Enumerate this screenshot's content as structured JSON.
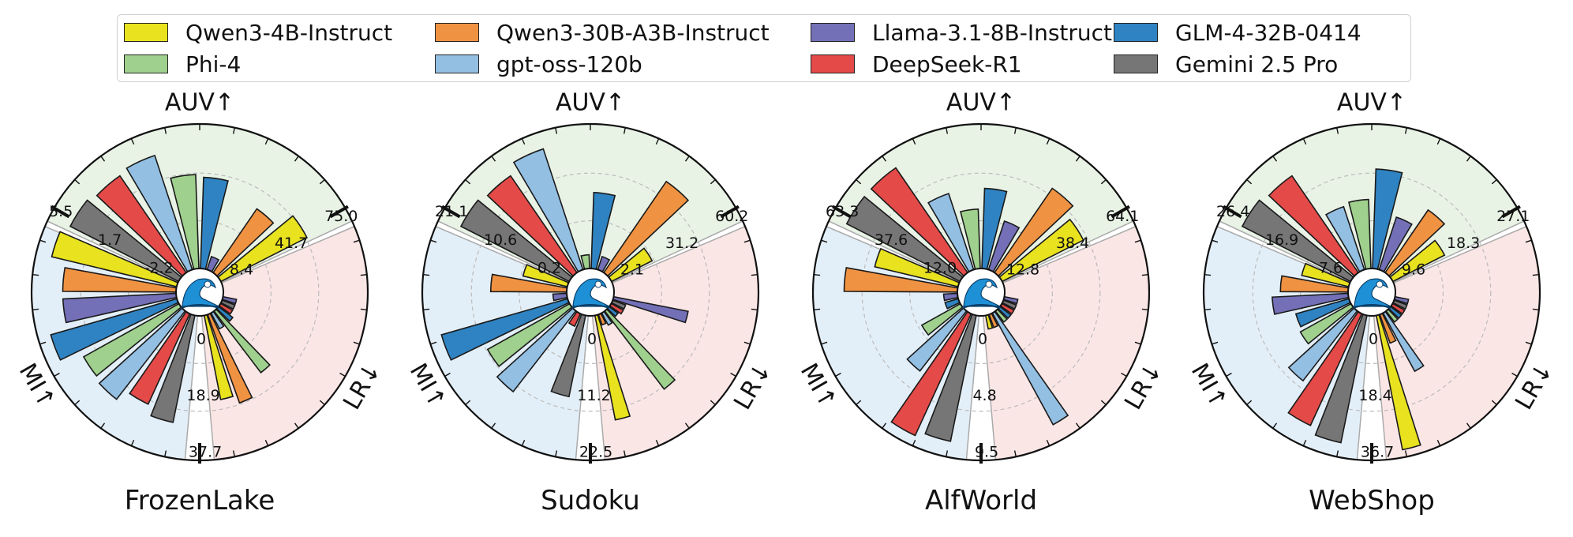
{
  "legend": [
    {
      "label": "Qwen3-4B-Instruct",
      "color": "#e8e21f"
    },
    {
      "label": "Phi-4",
      "color": "#9fd08d"
    },
    {
      "label": "Qwen3-30B-A3B-Instruct",
      "color": "#ef9242"
    },
    {
      "label": "gpt-oss-120b",
      "color": "#93bfe3"
    },
    {
      "label": "Llama-3.1-8B-Instruct",
      "color": "#7370b8"
    },
    {
      "label": "DeepSeek-R1",
      "color": "#e34a48"
    },
    {
      "label": "GLM-4-32B-0414",
      "color": "#2f83c2"
    },
    {
      "label": "Gemini 2.5 Pro",
      "color": "#767676"
    }
  ],
  "center_icon": "ocean-wave-icon",
  "sector_colors": {
    "AUV": "#e8f3e6",
    "LR": "#fbe6e6",
    "MI": "#e3eff8"
  },
  "chart_data": [
    {
      "type": "polar-bar",
      "title": "FrozenLake",
      "axes": [
        {
          "key": "AUV",
          "label": "AUV↑",
          "ticks": [
            "8.4",
            "41.7",
            "75.0"
          ]
        },
        {
          "key": "LR",
          "label": "LR↓",
          "ticks": [
            "0",
            "18.9",
            "37.7"
          ]
        },
        {
          "key": "MI",
          "label": "MI↑",
          "ticks": [
            "-2.2",
            "1.7",
            "5.5"
          ]
        }
      ],
      "series": [
        {
          "name": "Qwen3-4B-Instruct",
          "AUV": 0.7,
          "LR": 0.62,
          "MI": 0.93
        },
        {
          "name": "Qwen3-30B-A3B-Instruct",
          "AUV": 0.56,
          "LR": 0.68,
          "MI": 0.82
        },
        {
          "name": "GLM-4-32B-0414",
          "AUV": 0.66,
          "LR": 0.13,
          "MI": 0.95
        },
        {
          "name": "Phi-4",
          "AUV": 0.68,
          "LR": 0.56,
          "MI": 0.79
        },
        {
          "name": "gpt-oss-120b",
          "AUV": 0.87,
          "LR": 0.13,
          "MI": 0.81
        },
        {
          "name": "DeepSeek-R1",
          "AUV": 0.85,
          "LR": 0.1,
          "MI": 0.72
        },
        {
          "name": "Gemini 2.5 Pro",
          "AUV": 0.88,
          "LR": 0.1,
          "MI": 0.79
        },
        {
          "name": "Llama-3.1-8B-Instruct",
          "AUV": 0.1,
          "LR": 0.1,
          "MI": 0.82
        }
      ]
    },
    {
      "type": "polar-bar",
      "title": "Sudoku",
      "axes": [
        {
          "key": "AUV",
          "label": "AUV↑",
          "ticks": [
            "2.1",
            "31.2",
            "60.2"
          ]
        },
        {
          "key": "LR",
          "label": "LR↓",
          "ticks": [
            "0",
            "11.2",
            "22.5"
          ]
        },
        {
          "key": "MI",
          "label": "MI↑",
          "ticks": [
            "0.2",
            "10.6",
            "21.1"
          ]
        }
      ],
      "series": [
        {
          "name": "Qwen3-4B-Instruct",
          "AUV": 0.33,
          "LR": 0.77,
          "MI": 0.33
        },
        {
          "name": "Qwen3-30B-A3B-Instruct",
          "AUV": 0.8,
          "LR": 0.08,
          "MI": 0.55
        },
        {
          "name": "GLM-4-32B-0414",
          "AUV": 0.55,
          "LR": 0.08,
          "MI": 0.95
        },
        {
          "name": "Phi-4",
          "AUV": 0.1,
          "LR": 0.71,
          "MI": 0.68
        },
        {
          "name": "gpt-oss-120b",
          "AUV": 0.92,
          "LR": 0.1,
          "MI": 0.74
        },
        {
          "name": "DeepSeek-R1",
          "AUV": 0.85,
          "LR": 0.1,
          "MI": 0.1
        },
        {
          "name": "Gemini 2.5 Pro",
          "AUV": 0.88,
          "LR": 0.1,
          "MI": 0.6
        },
        {
          "name": "Llama-3.1-8B-Instruct",
          "AUV": 0.1,
          "LR": 0.55,
          "MI": 0.1
        }
      ]
    },
    {
      "type": "polar-bar",
      "title": "AlfWorld",
      "axes": [
        {
          "key": "AUV",
          "label": "AUV↑",
          "ticks": [
            "12.8",
            "38.4",
            "64.1"
          ]
        },
        {
          "key": "LR",
          "label": "LR↓",
          "ticks": [
            "0",
            "4.8",
            "9.5"
          ]
        },
        {
          "key": "MI",
          "label": "MI↑",
          "ticks": [
            "12.0",
            "37.6",
            "63.3"
          ]
        }
      ],
      "series": [
        {
          "name": "Qwen3-4B-Instruct",
          "AUV": 0.66,
          "LR": 0.1,
          "MI": 0.62
        },
        {
          "name": "Qwen3-30B-A3B-Instruct",
          "AUV": 0.74,
          "LR": 0.1,
          "MI": 0.82
        },
        {
          "name": "GLM-4-32B-0414",
          "AUV": 0.58,
          "LR": 0.1,
          "MI": 0.1
        },
        {
          "name": "Phi-4",
          "AUV": 0.43,
          "LR": 0.1,
          "MI": 0.32
        },
        {
          "name": "gpt-oss-120b",
          "AUV": 0.58,
          "LR": 0.92,
          "MI": 0.55
        },
        {
          "name": "DeepSeek-R1",
          "AUV": 0.92,
          "LR": 0.1,
          "MI": 0.97
        },
        {
          "name": "Gemini 2.5 Pro",
          "AUV": 0.92,
          "LR": 0.1,
          "MI": 0.93
        },
        {
          "name": "Llama-3.1-8B-Instruct",
          "AUV": 0.37,
          "LR": 0.1,
          "MI": 0.1
        }
      ]
    },
    {
      "type": "polar-bar",
      "title": "WebShop",
      "axes": [
        {
          "key": "AUV",
          "label": "AUV↑",
          "ticks": [
            "9.6",
            "18.3",
            "27.1"
          ]
        },
        {
          "key": "LR",
          "label": "LR↓",
          "ticks": [
            "0",
            "18.4",
            "36.7"
          ]
        },
        {
          "key": "MI",
          "label": "MI↑",
          "ticks": [
            "7.6",
            "16.9",
            "26.4"
          ]
        }
      ],
      "series": [
        {
          "name": "Qwen3-4B-Instruct",
          "AUV": 0.42,
          "LR": 0.99,
          "MI": 0.35
        },
        {
          "name": "Qwen3-30B-A3B-Instruct",
          "AUV": 0.55,
          "LR": 0.22,
          "MI": 0.49
        },
        {
          "name": "GLM-4-32B-0414",
          "AUV": 0.72,
          "LR": 0.1,
          "MI": 0.4
        },
        {
          "name": "Phi-4",
          "AUV": 0.5,
          "LR": 0.1,
          "MI": 0.42
        },
        {
          "name": "gpt-oss-120b",
          "AUV": 0.48,
          "LR": 0.48,
          "MI": 0.64
        },
        {
          "name": "DeepSeek-R1",
          "AUV": 0.85,
          "LR": 0.1,
          "MI": 0.89
        },
        {
          "name": "Gemini 2.5 Pro",
          "AUV": 0.88,
          "LR": 0.1,
          "MI": 0.94
        },
        {
          "name": "Llama-3.1-8B-Instruct",
          "AUV": 0.4,
          "LR": 0.1,
          "MI": 0.55
        }
      ]
    }
  ]
}
